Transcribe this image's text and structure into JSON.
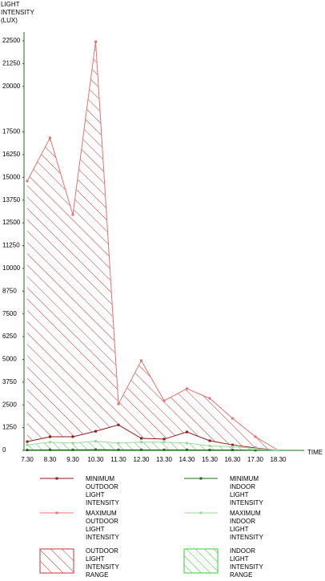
{
  "chart_data": {
    "type": "line",
    "y_label_lines": [
      "LIGHT",
      "INTENSITY",
      "(LUX)"
    ],
    "x_label": "TIME",
    "categories": [
      "7.30",
      "8.30",
      "9.30",
      "10.30",
      "11.30",
      "12.30",
      "13.30",
      "14.30",
      "15.30",
      "16.30",
      "17.30",
      "18.30"
    ],
    "series": [
      {
        "name": "MINIMUM OUTDOOR LIGHT INTENSITY",
        "color": "#8b1a1a",
        "values": [
          480,
          750,
          750,
          1050,
          1400,
          660,
          620,
          1010,
          530,
          300,
          130,
          0
        ]
      },
      {
        "name": "MAXIMUM OUTDOOR LIGHT INTENSITY",
        "color": "#e87070",
        "values": [
          14800,
          17170,
          12950,
          22450,
          2550,
          4930,
          2730,
          3390,
          2860,
          1760,
          750,
          0
        ]
      },
      {
        "name": "MINIMUM INDOOR LIGHT INTENSITY",
        "color": "#1e6b1e",
        "values": [
          20,
          30,
          30,
          40,
          30,
          30,
          30,
          30,
          20,
          20,
          10,
          0
        ]
      },
      {
        "name": "MAXIMUM INDOOR LIGHT INTENSITY",
        "color": "#9ad89a",
        "values": [
          300,
          450,
          400,
          500,
          400,
          450,
          450,
          400,
          250,
          200,
          100,
          0
        ]
      }
    ],
    "ranges": [
      {
        "name": "OUTDOOR LIGHT INTENSITY RANGE",
        "color": "#cc3333"
      },
      {
        "name": "INDOOR LIGHT INTENSITY RANGE",
        "color": "#33cc33"
      }
    ],
    "ylim": [
      0,
      22500
    ],
    "yticks": [
      0,
      1250,
      2500,
      3750,
      5000,
      6250,
      7500,
      8750,
      10000,
      11250,
      12500,
      13750,
      15000,
      16250,
      17500,
      20000,
      21250,
      22500
    ]
  }
}
